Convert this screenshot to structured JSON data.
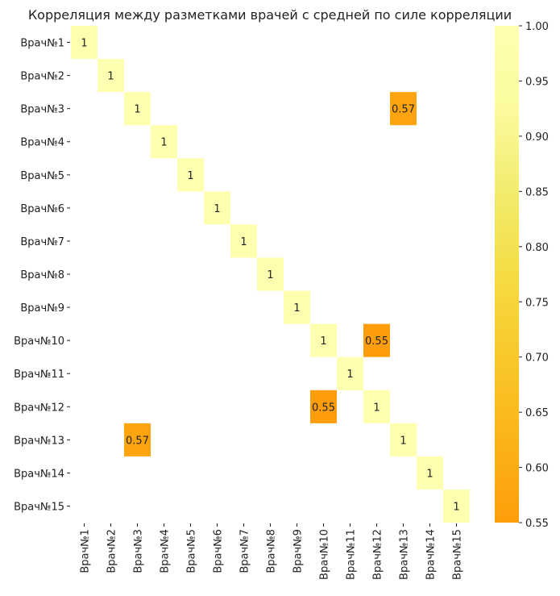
{
  "chart_data": {
    "type": "heatmap",
    "title": "Корреляция между разметками врачей с средней по силе корреляции",
    "rows": [
      "Врач№1",
      "Врач№2",
      "Врач№3",
      "Врач№4",
      "Врач№5",
      "Врач№6",
      "Врач№7",
      "Врач№8",
      "Врач№9",
      "Врач№10",
      "Врач№11",
      "Врач№12",
      "Врач№13",
      "Врач№14",
      "Врач№15"
    ],
    "columns": [
      "Врач№1",
      "Врач№2",
      "Врач№3",
      "Врач№4",
      "Врач№5",
      "Врач№6",
      "Врач№7",
      "Врач№8",
      "Врач№9",
      "Врач№10",
      "Врач№11",
      "Врач№12",
      "Врач№13",
      "Врач№14",
      "Врач№15"
    ],
    "cells": [
      {
        "row": 0,
        "col": 0,
        "value": 1,
        "label": "1"
      },
      {
        "row": 1,
        "col": 1,
        "value": 1,
        "label": "1"
      },
      {
        "row": 2,
        "col": 2,
        "value": 1,
        "label": "1"
      },
      {
        "row": 2,
        "col": 12,
        "value": 0.57,
        "label": "0.57"
      },
      {
        "row": 3,
        "col": 3,
        "value": 1,
        "label": "1"
      },
      {
        "row": 4,
        "col": 4,
        "value": 1,
        "label": "1"
      },
      {
        "row": 5,
        "col": 5,
        "value": 1,
        "label": "1"
      },
      {
        "row": 6,
        "col": 6,
        "value": 1,
        "label": "1"
      },
      {
        "row": 7,
        "col": 7,
        "value": 1,
        "label": "1"
      },
      {
        "row": 8,
        "col": 8,
        "value": 1,
        "label": "1"
      },
      {
        "row": 9,
        "col": 9,
        "value": 1,
        "label": "1"
      },
      {
        "row": 9,
        "col": 11,
        "value": 0.55,
        "label": "0.55"
      },
      {
        "row": 10,
        "col": 10,
        "value": 1,
        "label": "1"
      },
      {
        "row": 11,
        "col": 9,
        "value": 0.55,
        "label": "0.55"
      },
      {
        "row": 11,
        "col": 11,
        "value": 1,
        "label": "1"
      },
      {
        "row": 12,
        "col": 2,
        "value": 0.57,
        "label": "0.57"
      },
      {
        "row": 12,
        "col": 12,
        "value": 1,
        "label": "1"
      },
      {
        "row": 13,
        "col": 13,
        "value": 1,
        "label": "1"
      },
      {
        "row": 14,
        "col": 14,
        "value": 1,
        "label": "1"
      }
    ],
    "colorbar": {
      "range": [
        0.55,
        1.0
      ],
      "ticks": [
        "0.55",
        "0.60",
        "0.65",
        "0.70",
        "0.75",
        "0.80",
        "0.85",
        "0.90",
        "0.95",
        "1.00"
      ],
      "colors": [
        "#ff9e0a",
        "#fbb418",
        "#f9c82b",
        "#f5dc44",
        "#f2ec6e",
        "#fbfb9e",
        "#ffffb0"
      ]
    }
  }
}
